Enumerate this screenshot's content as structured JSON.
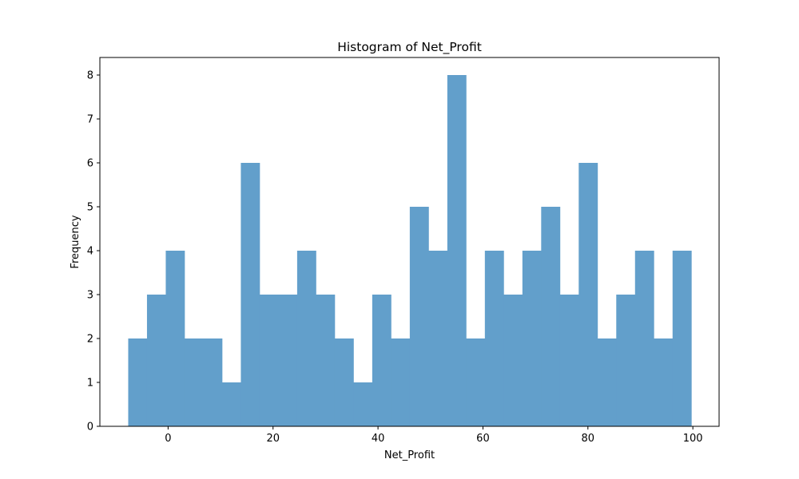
{
  "chart_data": {
    "type": "bar",
    "title": "Histogram of Net_Profit",
    "xlabel": "Net_Profit",
    "ylabel": "Frequency",
    "bin_start": -7.6,
    "bin_width": 3.577,
    "values": [
      2,
      3,
      4,
      2,
      2,
      1,
      6,
      3,
      3,
      4,
      3,
      2,
      1,
      3,
      2,
      5,
      4,
      8,
      2,
      4,
      3,
      4,
      5,
      3,
      6,
      2,
      3,
      4,
      2,
      4
    ],
    "xlim": [
      -13,
      105
    ],
    "ylim": [
      0,
      8.4
    ],
    "x_ticks": [
      0,
      20,
      40,
      60,
      80,
      100
    ],
    "y_ticks": [
      0,
      1,
      2,
      3,
      4,
      5,
      6,
      7,
      8
    ],
    "grid": false,
    "bar_color": "#629fcb"
  }
}
